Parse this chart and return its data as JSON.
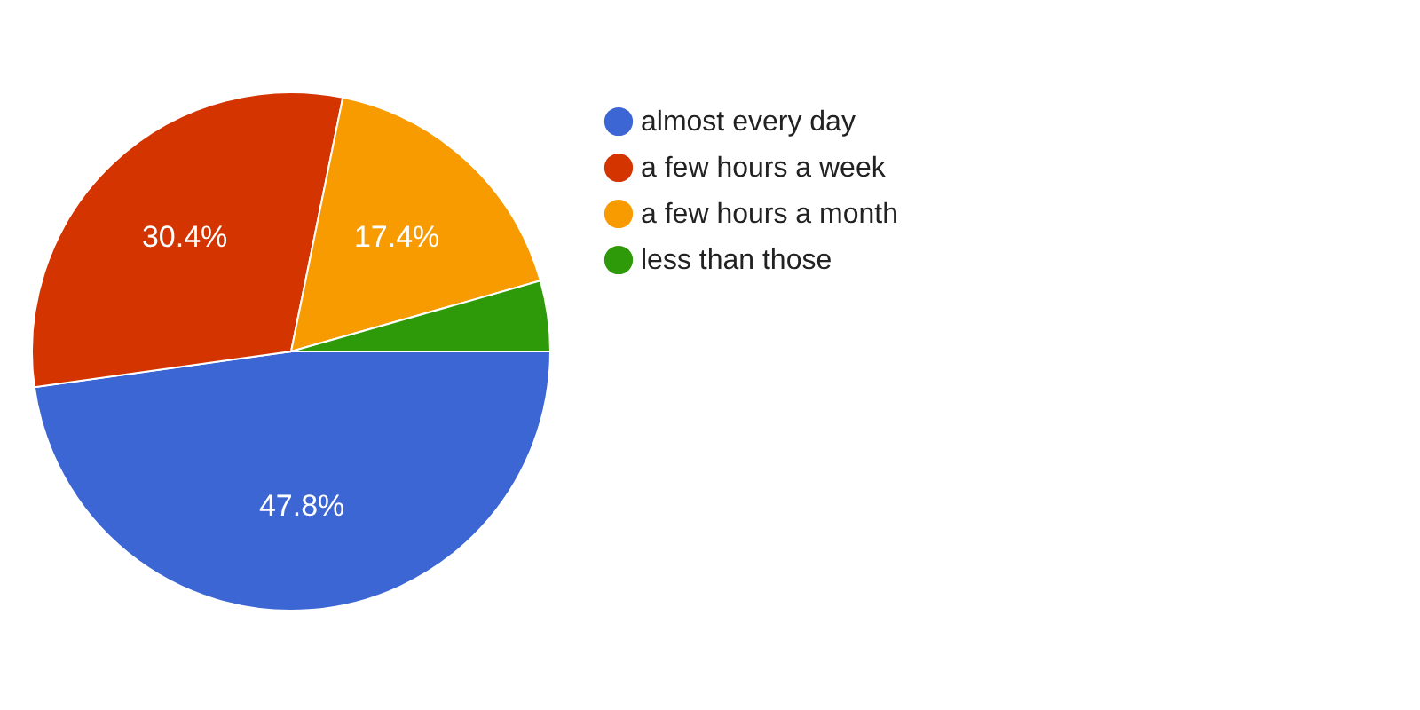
{
  "chart_data": {
    "type": "pie",
    "categories": [
      "almost every day",
      "a few hours a week",
      "a few hours a month",
      "less than those"
    ],
    "values": [
      47.8,
      30.4,
      17.4,
      4.4
    ],
    "colors": [
      "#3c66d4",
      "#d43500",
      "#f89b00",
      "#2f9a09"
    ],
    "value_labels": [
      "47.8%",
      "30.4%",
      "17.4%",
      null
    ],
    "legend": "right"
  }
}
